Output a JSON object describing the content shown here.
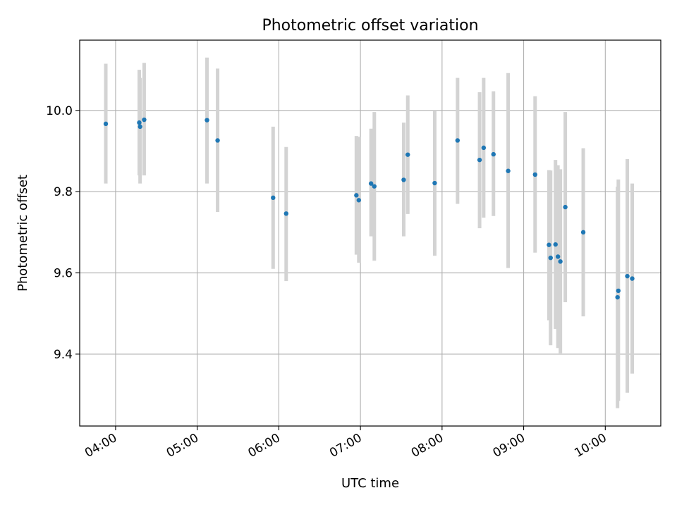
{
  "chart_data": {
    "type": "scatter",
    "title": "Photometric offset variation",
    "xlabel": "UTC time",
    "ylabel": "Photometric offset",
    "x_unit": "hours (UTC)",
    "xlim": [
      3.56,
      10.68
    ],
    "ylim": [
      9.223,
      10.173
    ],
    "x_ticks": [
      {
        "value": 4,
        "label": "04:00"
      },
      {
        "value": 5,
        "label": "05:00"
      },
      {
        "value": 6,
        "label": "06:00"
      },
      {
        "value": 7,
        "label": "07:00"
      },
      {
        "value": 8,
        "label": "08:00"
      },
      {
        "value": 9,
        "label": "09:00"
      },
      {
        "value": 10,
        "label": "10:00"
      }
    ],
    "y_ticks": [
      {
        "value": 9.4,
        "label": "9.4"
      },
      {
        "value": 9.6,
        "label": "9.6"
      },
      {
        "value": 9.8,
        "label": "9.8"
      },
      {
        "value": 10.0,
        "label": "10.0"
      }
    ],
    "grid": true,
    "colors": {
      "points": "#1f77b4",
      "error_bars": "#d3d3d3",
      "grid": "#b0b0b0"
    },
    "series": [
      {
        "points": [
          {
            "x": 3.88,
            "y": 9.967,
            "ylo": 9.82,
            "yhi": 10.115
          },
          {
            "x": 4.29,
            "y": 9.97,
            "ylo": 9.84,
            "yhi": 10.1
          },
          {
            "x": 4.3,
            "y": 9.96,
            "ylo": 9.82,
            "yhi": 10.08
          },
          {
            "x": 4.35,
            "y": 9.977,
            "ylo": 9.84,
            "yhi": 10.117
          },
          {
            "x": 5.12,
            "y": 9.976,
            "ylo": 9.82,
            "yhi": 10.13
          },
          {
            "x": 5.25,
            "y": 9.926,
            "ylo": 9.75,
            "yhi": 10.103
          },
          {
            "x": 5.93,
            "y": 9.785,
            "ylo": 9.61,
            "yhi": 9.96
          },
          {
            "x": 6.09,
            "y": 9.746,
            "ylo": 9.58,
            "yhi": 9.91
          },
          {
            "x": 6.95,
            "y": 9.791,
            "ylo": 9.645,
            "yhi": 9.937
          },
          {
            "x": 6.98,
            "y": 9.779,
            "ylo": 9.625,
            "yhi": 9.935
          },
          {
            "x": 7.13,
            "y": 9.82,
            "ylo": 9.69,
            "yhi": 9.955
          },
          {
            "x": 7.17,
            "y": 9.813,
            "ylo": 9.63,
            "yhi": 9.996
          },
          {
            "x": 7.53,
            "y": 9.829,
            "ylo": 9.69,
            "yhi": 9.97
          },
          {
            "x": 7.58,
            "y": 9.891,
            "ylo": 9.745,
            "yhi": 10.037
          },
          {
            "x": 7.91,
            "y": 9.821,
            "ylo": 9.642,
            "yhi": 10.0
          },
          {
            "x": 8.19,
            "y": 9.926,
            "ylo": 9.77,
            "yhi": 10.08
          },
          {
            "x": 8.46,
            "y": 9.878,
            "ylo": 9.71,
            "yhi": 10.045
          },
          {
            "x": 8.51,
            "y": 9.908,
            "ylo": 9.736,
            "yhi": 10.08
          },
          {
            "x": 8.63,
            "y": 9.892,
            "ylo": 9.74,
            "yhi": 10.047
          },
          {
            "x": 8.81,
            "y": 9.851,
            "ylo": 9.612,
            "yhi": 10.092
          },
          {
            "x": 9.14,
            "y": 9.842,
            "ylo": 9.65,
            "yhi": 10.035
          },
          {
            "x": 9.31,
            "y": 9.669,
            "ylo": 9.483,
            "yhi": 9.853
          },
          {
            "x": 9.33,
            "y": 9.637,
            "ylo": 9.422,
            "yhi": 9.852
          },
          {
            "x": 9.39,
            "y": 9.67,
            "ylo": 9.462,
            "yhi": 9.878
          },
          {
            "x": 9.42,
            "y": 9.64,
            "ylo": 9.415,
            "yhi": 9.865
          },
          {
            "x": 9.45,
            "y": 9.628,
            "ylo": 9.402,
            "yhi": 9.855
          },
          {
            "x": 9.51,
            "y": 9.762,
            "ylo": 9.528,
            "yhi": 9.996
          },
          {
            "x": 9.73,
            "y": 9.7,
            "ylo": 9.493,
            "yhi": 9.907
          },
          {
            "x": 10.15,
            "y": 9.54,
            "ylo": 9.267,
            "yhi": 9.812
          },
          {
            "x": 10.16,
            "y": 9.556,
            "ylo": 9.285,
            "yhi": 9.83
          },
          {
            "x": 10.27,
            "y": 9.592,
            "ylo": 9.305,
            "yhi": 9.88
          },
          {
            "x": 10.33,
            "y": 9.586,
            "ylo": 9.352,
            "yhi": 9.82
          }
        ]
      }
    ]
  }
}
